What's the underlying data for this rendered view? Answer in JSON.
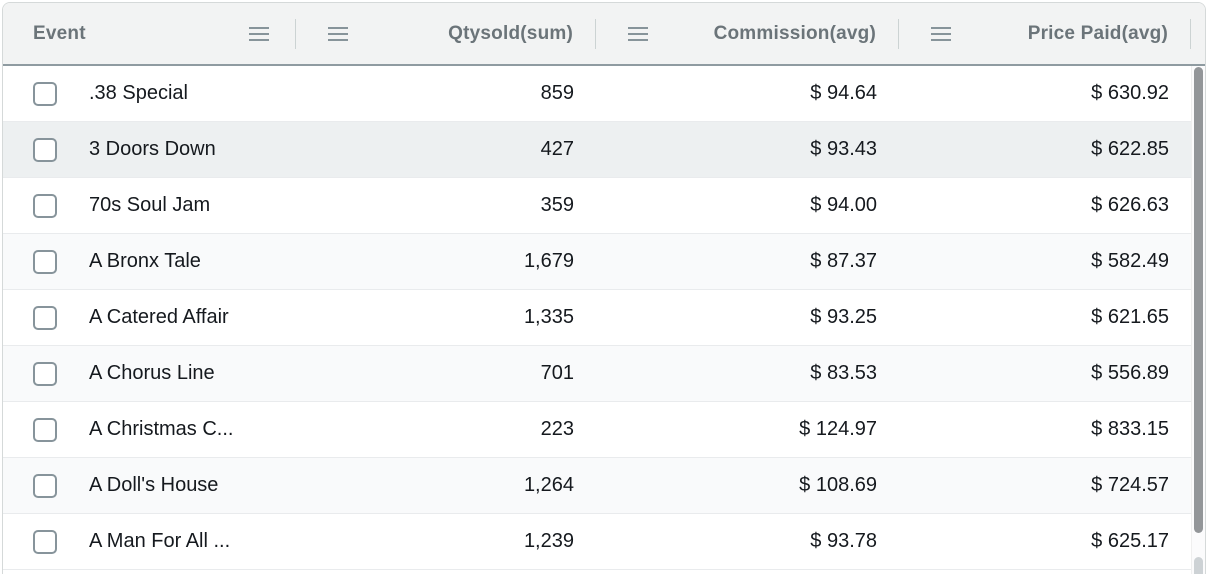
{
  "table": {
    "columns": [
      {
        "id": "event",
        "label": "Event",
        "align": "left"
      },
      {
        "id": "qtysold",
        "label": "Qtysold(sum)",
        "align": "right"
      },
      {
        "id": "commission",
        "label": "Commission(avg)",
        "align": "right"
      },
      {
        "id": "price_paid",
        "label": "Price Paid(avg)",
        "align": "right"
      }
    ],
    "rows": [
      {
        "checked": false,
        "event": ".38 Special",
        "qtysold": "859",
        "commission": "$ 94.64",
        "price_paid": "$ 630.92"
      },
      {
        "checked": false,
        "event": "3 Doors Down",
        "qtysold": "427",
        "commission": "$ 93.43",
        "price_paid": "$ 622.85"
      },
      {
        "checked": false,
        "event": "70s Soul Jam",
        "qtysold": "359",
        "commission": "$ 94.00",
        "price_paid": "$ 626.63"
      },
      {
        "checked": false,
        "event": "A Bronx Tale",
        "qtysold": "1,679",
        "commission": "$ 87.37",
        "price_paid": "$ 582.49"
      },
      {
        "checked": false,
        "event": "A Catered Affair",
        "qtysold": "1,335",
        "commission": "$ 93.25",
        "price_paid": "$ 621.65"
      },
      {
        "checked": false,
        "event": "A Chorus Line",
        "qtysold": "701",
        "commission": "$ 83.53",
        "price_paid": "$ 556.89"
      },
      {
        "checked": false,
        "event": "A Christmas C...",
        "qtysold": "223",
        "commission": "$ 124.97",
        "price_paid": "$ 833.15"
      },
      {
        "checked": false,
        "event": "A Doll's House",
        "qtysold": "1,264",
        "commission": "$ 108.69",
        "price_paid": "$ 724.57"
      },
      {
        "checked": false,
        "event": "A Man For All ...",
        "qtysold": "1,239",
        "commission": "$ 93.78",
        "price_paid": "$ 625.17"
      }
    ],
    "highlighted_row_index": 1
  },
  "icons": {
    "column_menu": "hamburger"
  },
  "colors": {
    "header_bg": "#f2f3f3",
    "header_text": "#6b7479",
    "header_border": "#8f9ba1",
    "row_text": "#15191e",
    "row_highlight_bg": "#edf0f1",
    "row_zebra_bg": "#f9fafb",
    "row_separator": "#e9ebed",
    "checkbox_border": "#87949b",
    "column_divider": "#ccd3d3",
    "outer_border": "#d5d9d9",
    "scrollbar_thumb": "#939699"
  }
}
